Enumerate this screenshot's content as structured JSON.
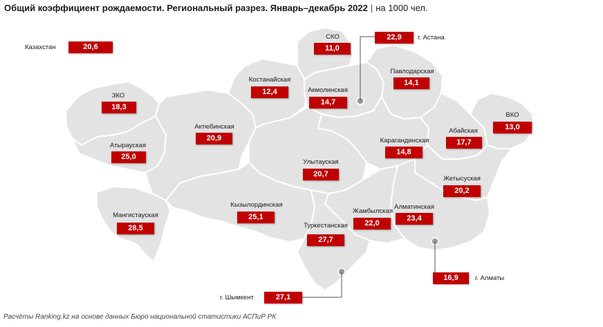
{
  "title": "Общий коэффициент рождаемости. Региональный разрез. Январь–декабрь 2022",
  "separator": "|",
  "unit": "на 1000 чел.",
  "footer": "Расчёты Ranking.kz на основе данных Бюро национальной статистики АСПиР РК",
  "colors": {
    "value_box": "#c00000",
    "map_fill": "#e3e3e3",
    "map_border": "#ffffff",
    "leader_line": "#555555"
  },
  "kazakhstan": {
    "label": "Казахстан",
    "value": "20,6"
  },
  "regions": {
    "sko": {
      "label": "СКО",
      "value": "11,0"
    },
    "astana": {
      "label": "г. Астана",
      "value": "22,9"
    },
    "pavlodar": {
      "label": "Павлодарская",
      "value": "14,1"
    },
    "kostanay": {
      "label": "Костанайская",
      "value": "12,4"
    },
    "akmola": {
      "label": "Акмолинская",
      "value": "14,7"
    },
    "zko": {
      "label": "ЗКО",
      "value": "18,3"
    },
    "aktobe": {
      "label": "Актюбинская",
      "value": "20,9"
    },
    "vko": {
      "label": "ВКО",
      "value": "13,0"
    },
    "abay": {
      "label": "Абайская",
      "value": "17,7"
    },
    "karaganda": {
      "label": "Карагандинская",
      "value": "14,8"
    },
    "atyrau": {
      "label": "Атырауская",
      "value": "25,0"
    },
    "ulytau": {
      "label": "Улытауская",
      "value": "20,7"
    },
    "zhetysu": {
      "label": "Жетысуская",
      "value": "20,2"
    },
    "mangystau": {
      "label": "Мангистауская",
      "value": "28,5"
    },
    "kyzylorda": {
      "label": "Кызылординская",
      "value": "25,1"
    },
    "zhambyl": {
      "label": "Жамбылская",
      "value": "22,0"
    },
    "almaty_reg": {
      "label": "Алматинская",
      "value": "23,4"
    },
    "turkestan": {
      "label": "Туркестанская",
      "value": "27,7"
    },
    "almaty_city": {
      "label": "г. Алматы",
      "value": "16,9"
    },
    "shymkent": {
      "label": "г. Шымкент",
      "value": "27,1"
    }
  }
}
